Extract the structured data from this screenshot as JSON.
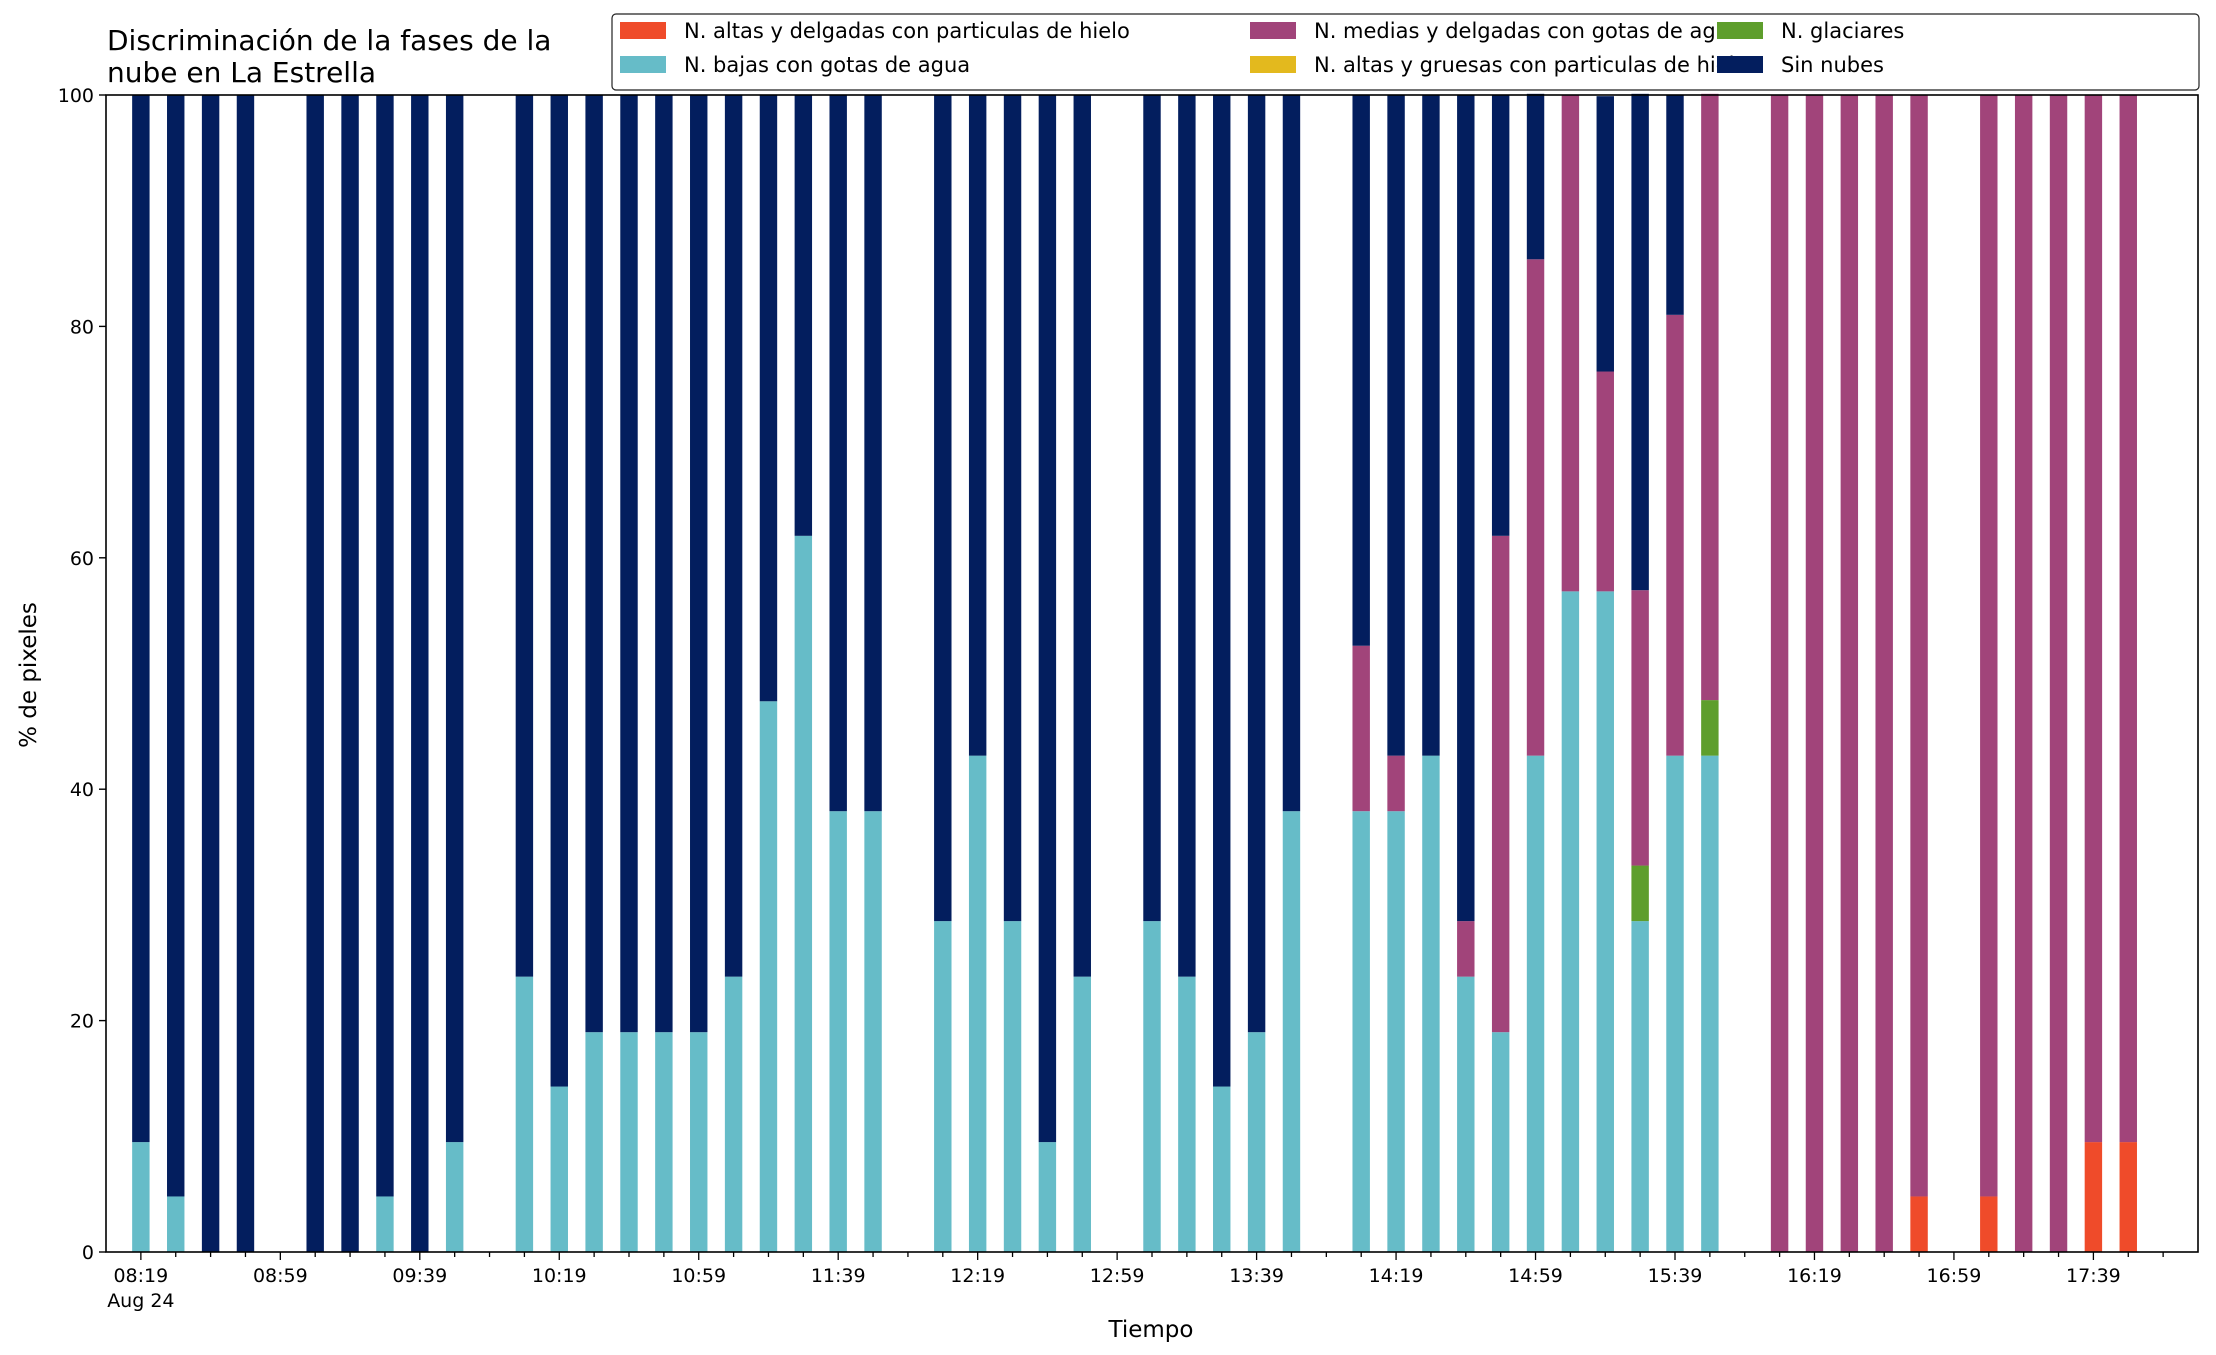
{
  "chart_data": {
    "type": "bar",
    "stacked": true,
    "title": "Discriminación de la fases de la\nnube en La Estrella",
    "xlabel": "Tiempo",
    "ylabel": "% de pixeles",
    "ylim": [
      0,
      100
    ],
    "yticks": [
      0,
      20,
      40,
      60,
      80,
      100
    ],
    "grid": false,
    "legend_position": "top-right",
    "x_start": "08:19",
    "x_step_minutes": 10,
    "x_end": "17:59",
    "xticks": [
      "08:19",
      "08:59",
      "09:39",
      "10:19",
      "10:59",
      "11:39",
      "12:19",
      "12:59",
      "13:39",
      "14:19",
      "14:59",
      "15:39",
      "16:19",
      "16:59",
      "17:39"
    ],
    "x_date_label": "Aug 24",
    "legend_order": [
      "N. altas y delgadas con particulas de hielo",
      "N. bajas con gotas de agua",
      "N. medias y delgadas con gotas de agua",
      "N. altas y gruesas con particulas de hielo",
      "N. glaciares",
      "Sin nubes"
    ],
    "series": [
      {
        "name": "N. altas y delgadas con particulas de hielo",
        "color": "#ef4b2a",
        "values": [
          0,
          0,
          0,
          0,
          null,
          0,
          0,
          0,
          0,
          0,
          null,
          0,
          0,
          0,
          0,
          0,
          0,
          0,
          0,
          0,
          0,
          0,
          null,
          0,
          0,
          0,
          0,
          0,
          null,
          0,
          0,
          0,
          0,
          0,
          null,
          0,
          0,
          0,
          0,
          0,
          0,
          0,
          0,
          0,
          0,
          0,
          null,
          0,
          0,
          0,
          0,
          4.8,
          null,
          4.8,
          0,
          0,
          9.5,
          9.5,
          null
        ]
      },
      {
        "name": "N. altas y gruesas con particulas de hielo",
        "color": "#e3b91e",
        "values": [
          0,
          0,
          0,
          0,
          null,
          0,
          0,
          0,
          0,
          0,
          null,
          0,
          0,
          0,
          0,
          0,
          0,
          0,
          0,
          0,
          0,
          0,
          null,
          0,
          0,
          0,
          0,
          0,
          null,
          0,
          0,
          0,
          0,
          0,
          null,
          0,
          0,
          0,
          0,
          0,
          0,
          0,
          0,
          0,
          0,
          0,
          null,
          0,
          0,
          0,
          0,
          0,
          null,
          0,
          0,
          0,
          0,
          0,
          null
        ]
      },
      {
        "name": "N. bajas con gotas de agua",
        "color": "#66bcc8",
        "values": [
          9.5,
          4.8,
          0,
          0,
          null,
          0,
          0,
          4.8,
          0,
          9.5,
          null,
          23.8,
          14.3,
          19.0,
          19.0,
          19.0,
          19.0,
          23.8,
          47.6,
          61.9,
          38.1,
          38.1,
          null,
          28.6,
          42.9,
          28.6,
          9.5,
          23.8,
          null,
          28.6,
          23.8,
          14.3,
          19.0,
          38.1,
          null,
          38.1,
          38.1,
          42.9,
          23.8,
          19.0,
          42.9,
          57.1,
          57.1,
          28.6,
          42.9,
          42.9,
          null,
          0,
          0,
          0,
          0,
          0,
          null,
          0,
          0,
          0,
          0,
          0,
          null
        ]
      },
      {
        "name": "N. glaciares",
        "color": "#5e9e2c",
        "values": [
          0,
          0,
          0,
          0,
          null,
          0,
          0,
          0,
          0,
          0,
          null,
          0,
          0,
          0,
          0,
          0,
          0,
          0,
          0,
          0,
          0,
          0,
          null,
          0,
          0,
          0,
          0,
          0,
          null,
          0,
          0,
          0,
          0,
          0,
          null,
          0,
          0,
          0,
          0,
          0,
          0,
          0,
          0,
          4.8,
          0,
          4.8,
          null,
          0,
          0,
          0,
          0,
          0,
          null,
          0,
          0,
          0,
          0,
          0,
          null
        ]
      },
      {
        "name": "N. medias y delgadas con gotas de agua",
        "color": "#a1447a",
        "values": [
          0,
          0,
          0,
          0,
          null,
          0,
          0,
          0,
          0,
          0,
          null,
          0,
          0,
          0,
          0,
          0,
          0,
          0,
          0,
          0,
          0,
          0,
          null,
          0,
          0,
          0,
          0,
          0,
          null,
          0,
          0,
          0,
          0,
          0,
          null,
          14.3,
          4.8,
          0,
          4.8,
          42.9,
          42.9,
          42.9,
          19.0,
          23.8,
          38.1,
          52.4,
          null,
          100,
          100,
          100,
          100,
          95.2,
          null,
          95.2,
          100,
          100,
          90.5,
          90.5,
          null
        ]
      },
      {
        "name": "Sin nubes",
        "color": "#031e5e",
        "values": [
          90.5,
          95.2,
          100,
          100,
          null,
          100,
          100,
          95.2,
          100,
          90.5,
          null,
          76.2,
          85.7,
          81.0,
          81.0,
          81.0,
          81.0,
          76.2,
          52.4,
          38.1,
          61.9,
          61.9,
          null,
          71.4,
          57.1,
          71.4,
          90.5,
          76.2,
          null,
          71.4,
          76.2,
          85.7,
          81.0,
          61.9,
          null,
          47.6,
          57.1,
          57.1,
          71.4,
          38.1,
          14.3,
          0,
          23.8,
          42.9,
          19.0,
          0,
          null,
          0,
          0,
          0,
          0,
          0,
          null,
          0,
          0,
          0,
          0,
          0,
          null
        ]
      }
    ]
  }
}
